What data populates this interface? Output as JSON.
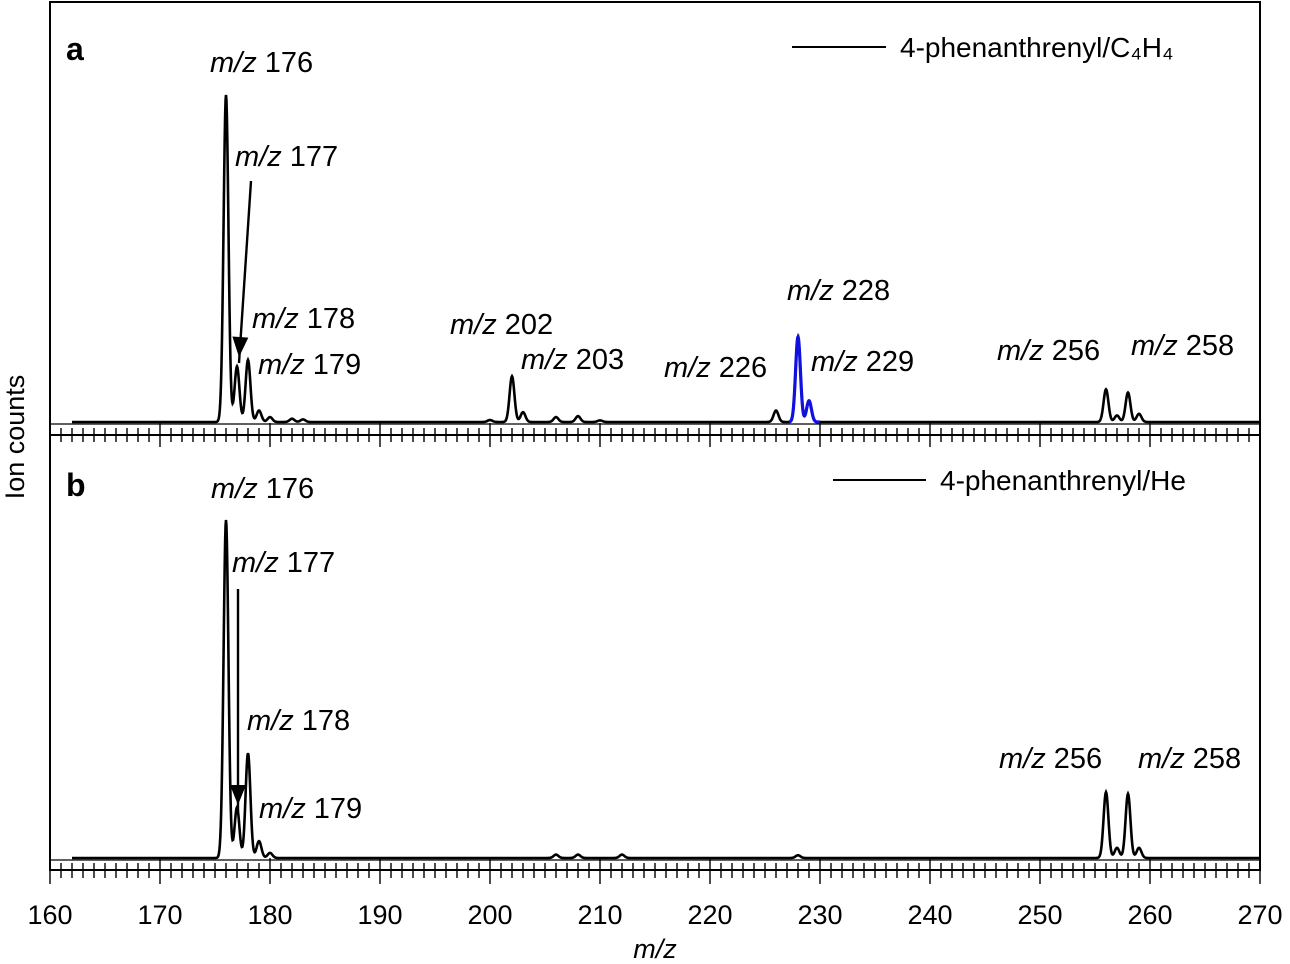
{
  "chart_data": [
    {
      "type": "line",
      "panel_label": "a",
      "legend": "4-phenanthrenyl/C₄H₄",
      "highlight_color": "#1010e0",
      "line_color": "#000000",
      "peaks": [
        {
          "x": 176,
          "y": 100,
          "label": "m/z 176"
        },
        {
          "x": 177,
          "y": 17,
          "label": "m/z 177"
        },
        {
          "x": 178,
          "y": 19,
          "label": "m/z 178"
        },
        {
          "x": 179,
          "y": 3.5,
          "label": "m/z 179"
        },
        {
          "x": 202,
          "y": 14,
          "label": "m/z 202"
        },
        {
          "x": 203,
          "y": 3,
          "label": "m/z 203"
        },
        {
          "x": 226,
          "y": 3.5,
          "label": "m/z 226"
        },
        {
          "x": 228,
          "y": 26,
          "label": "m/z 228",
          "highlight": true
        },
        {
          "x": 229,
          "y": 6.5,
          "label": "m/z 229",
          "highlight": true
        },
        {
          "x": 256,
          "y": 10,
          "label": "m/z 256"
        },
        {
          "x": 257,
          "y": 2,
          "label": ""
        },
        {
          "x": 258,
          "y": 9,
          "label": "m/z 258"
        },
        {
          "x": 259,
          "y": 2.5,
          "label": ""
        }
      ],
      "minor_peaks": [
        [
          180,
          1.5
        ],
        [
          182,
          1
        ],
        [
          183,
          0.8
        ],
        [
          200,
          0.6
        ],
        [
          206,
          1.5
        ],
        [
          208,
          1.8
        ],
        [
          210,
          0.5
        ]
      ]
    },
    {
      "type": "line",
      "panel_label": "b",
      "legend": "4-phenanthrenyl/He",
      "line_color": "#000000",
      "peaks": [
        {
          "x": 176,
          "y": 100,
          "label": "m/z 176"
        },
        {
          "x": 177,
          "y": 15,
          "label": "m/z 177"
        },
        {
          "x": 178,
          "y": 31,
          "label": "m/z 178"
        },
        {
          "x": 179,
          "y": 5,
          "label": "m/z 179"
        },
        {
          "x": 256,
          "y": 19.5,
          "label": "m/z 256"
        },
        {
          "x": 257,
          "y": 3,
          "label": ""
        },
        {
          "x": 258,
          "y": 19,
          "label": "m/z 258"
        },
        {
          "x": 259,
          "y": 3,
          "label": ""
        }
      ],
      "minor_peaks": [
        [
          180,
          1.5
        ],
        [
          206,
          1
        ],
        [
          208,
          1
        ],
        [
          212,
          1
        ],
        [
          228,
          0.8
        ]
      ]
    }
  ],
  "axes": {
    "xlabel": "m/z",
    "ylabel": "Ion counts",
    "xlim": [
      160,
      270
    ],
    "xticks": [
      "160",
      "170",
      "180",
      "190",
      "200",
      "210",
      "220",
      "230",
      "240",
      "250",
      "260",
      "270"
    ],
    "minor_tick_step": 1
  }
}
